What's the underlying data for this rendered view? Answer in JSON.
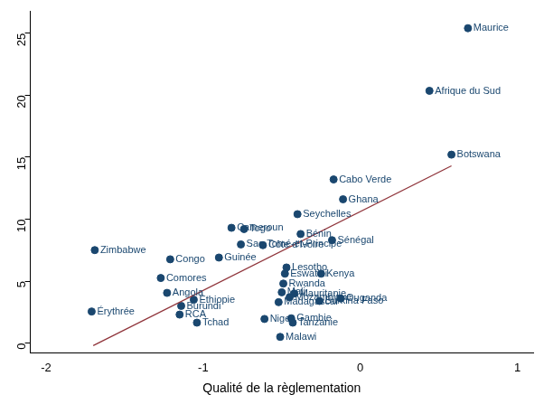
{
  "chart_data": {
    "type": "scatter",
    "x_label": "Qualité de la règlementation",
    "labels": [
      "Maurice",
      "Afrique du Sud",
      "Botswana",
      "Cabo Verde",
      "Ghana",
      "Seychelles",
      "Cameroun",
      "Togo",
      "Bénin",
      "Sénégal",
      "Sao Tomé-et-Principe",
      "Côte d'Ivoire",
      "Zimbabwe",
      "Guinée",
      "Congo",
      "Lesotho",
      "Eswatini",
      "Kenya",
      "Comores",
      "Rwanda",
      "Angola",
      "Mali",
      "Mauritanie",
      "Mozambique",
      "Ethiopie",
      "Madagascar",
      "Burkina Faso",
      "Ouganda",
      "Burundi",
      "Érythrée",
      "RCA",
      "Tchad",
      "Niger",
      "Gambie",
      "Tanzanie",
      "Malawi"
    ],
    "x": [
      0.685,
      0.44,
      0.58,
      -0.17,
      -0.11,
      -0.4,
      -0.82,
      -0.74,
      -0.38,
      -0.18,
      -0.76,
      -0.62,
      -1.69,
      -0.9,
      -1.21,
      -0.47,
      -0.48,
      -0.25,
      -1.27,
      -0.49,
      -1.23,
      -0.5,
      -0.42,
      -0.45,
      -1.06,
      -0.52,
      -0.26,
      -0.125,
      -1.14,
      -1.71,
      -1.15,
      -1.04,
      -0.61,
      -0.44,
      -0.43,
      -0.51
    ],
    "y": [
      25.4,
      20.35,
      15.2,
      13.2,
      11.6,
      10.4,
      9.3,
      9.2,
      8.8,
      8.3,
      7.96,
      7.9,
      7.5,
      6.9,
      6.76,
      6.1,
      5.6,
      5.6,
      5.25,
      4.8,
      4.05,
      4.1,
      4.0,
      3.7,
      3.5,
      3.3,
      3.4,
      3.6,
      3.0,
      2.55,
      2.3,
      1.65,
      1.95,
      2.0,
      1.65,
      0.5
    ],
    "color": "#1a476f",
    "marker": "circle",
    "fit_line": {
      "type": "line",
      "x": [
        -1.7,
        0.58
      ],
      "y": [
        -0.2,
        14.3
      ],
      "color": "#90353b",
      "line_style": "solid"
    },
    "xlim": [
      -2.1,
      1.1
    ],
    "ylim": [
      -0.8,
      26.8
    ],
    "xticks": [
      -2,
      -1,
      0,
      1
    ],
    "yticks": [
      0,
      5,
      10,
      15,
      20,
      25
    ],
    "grid": false
  }
}
